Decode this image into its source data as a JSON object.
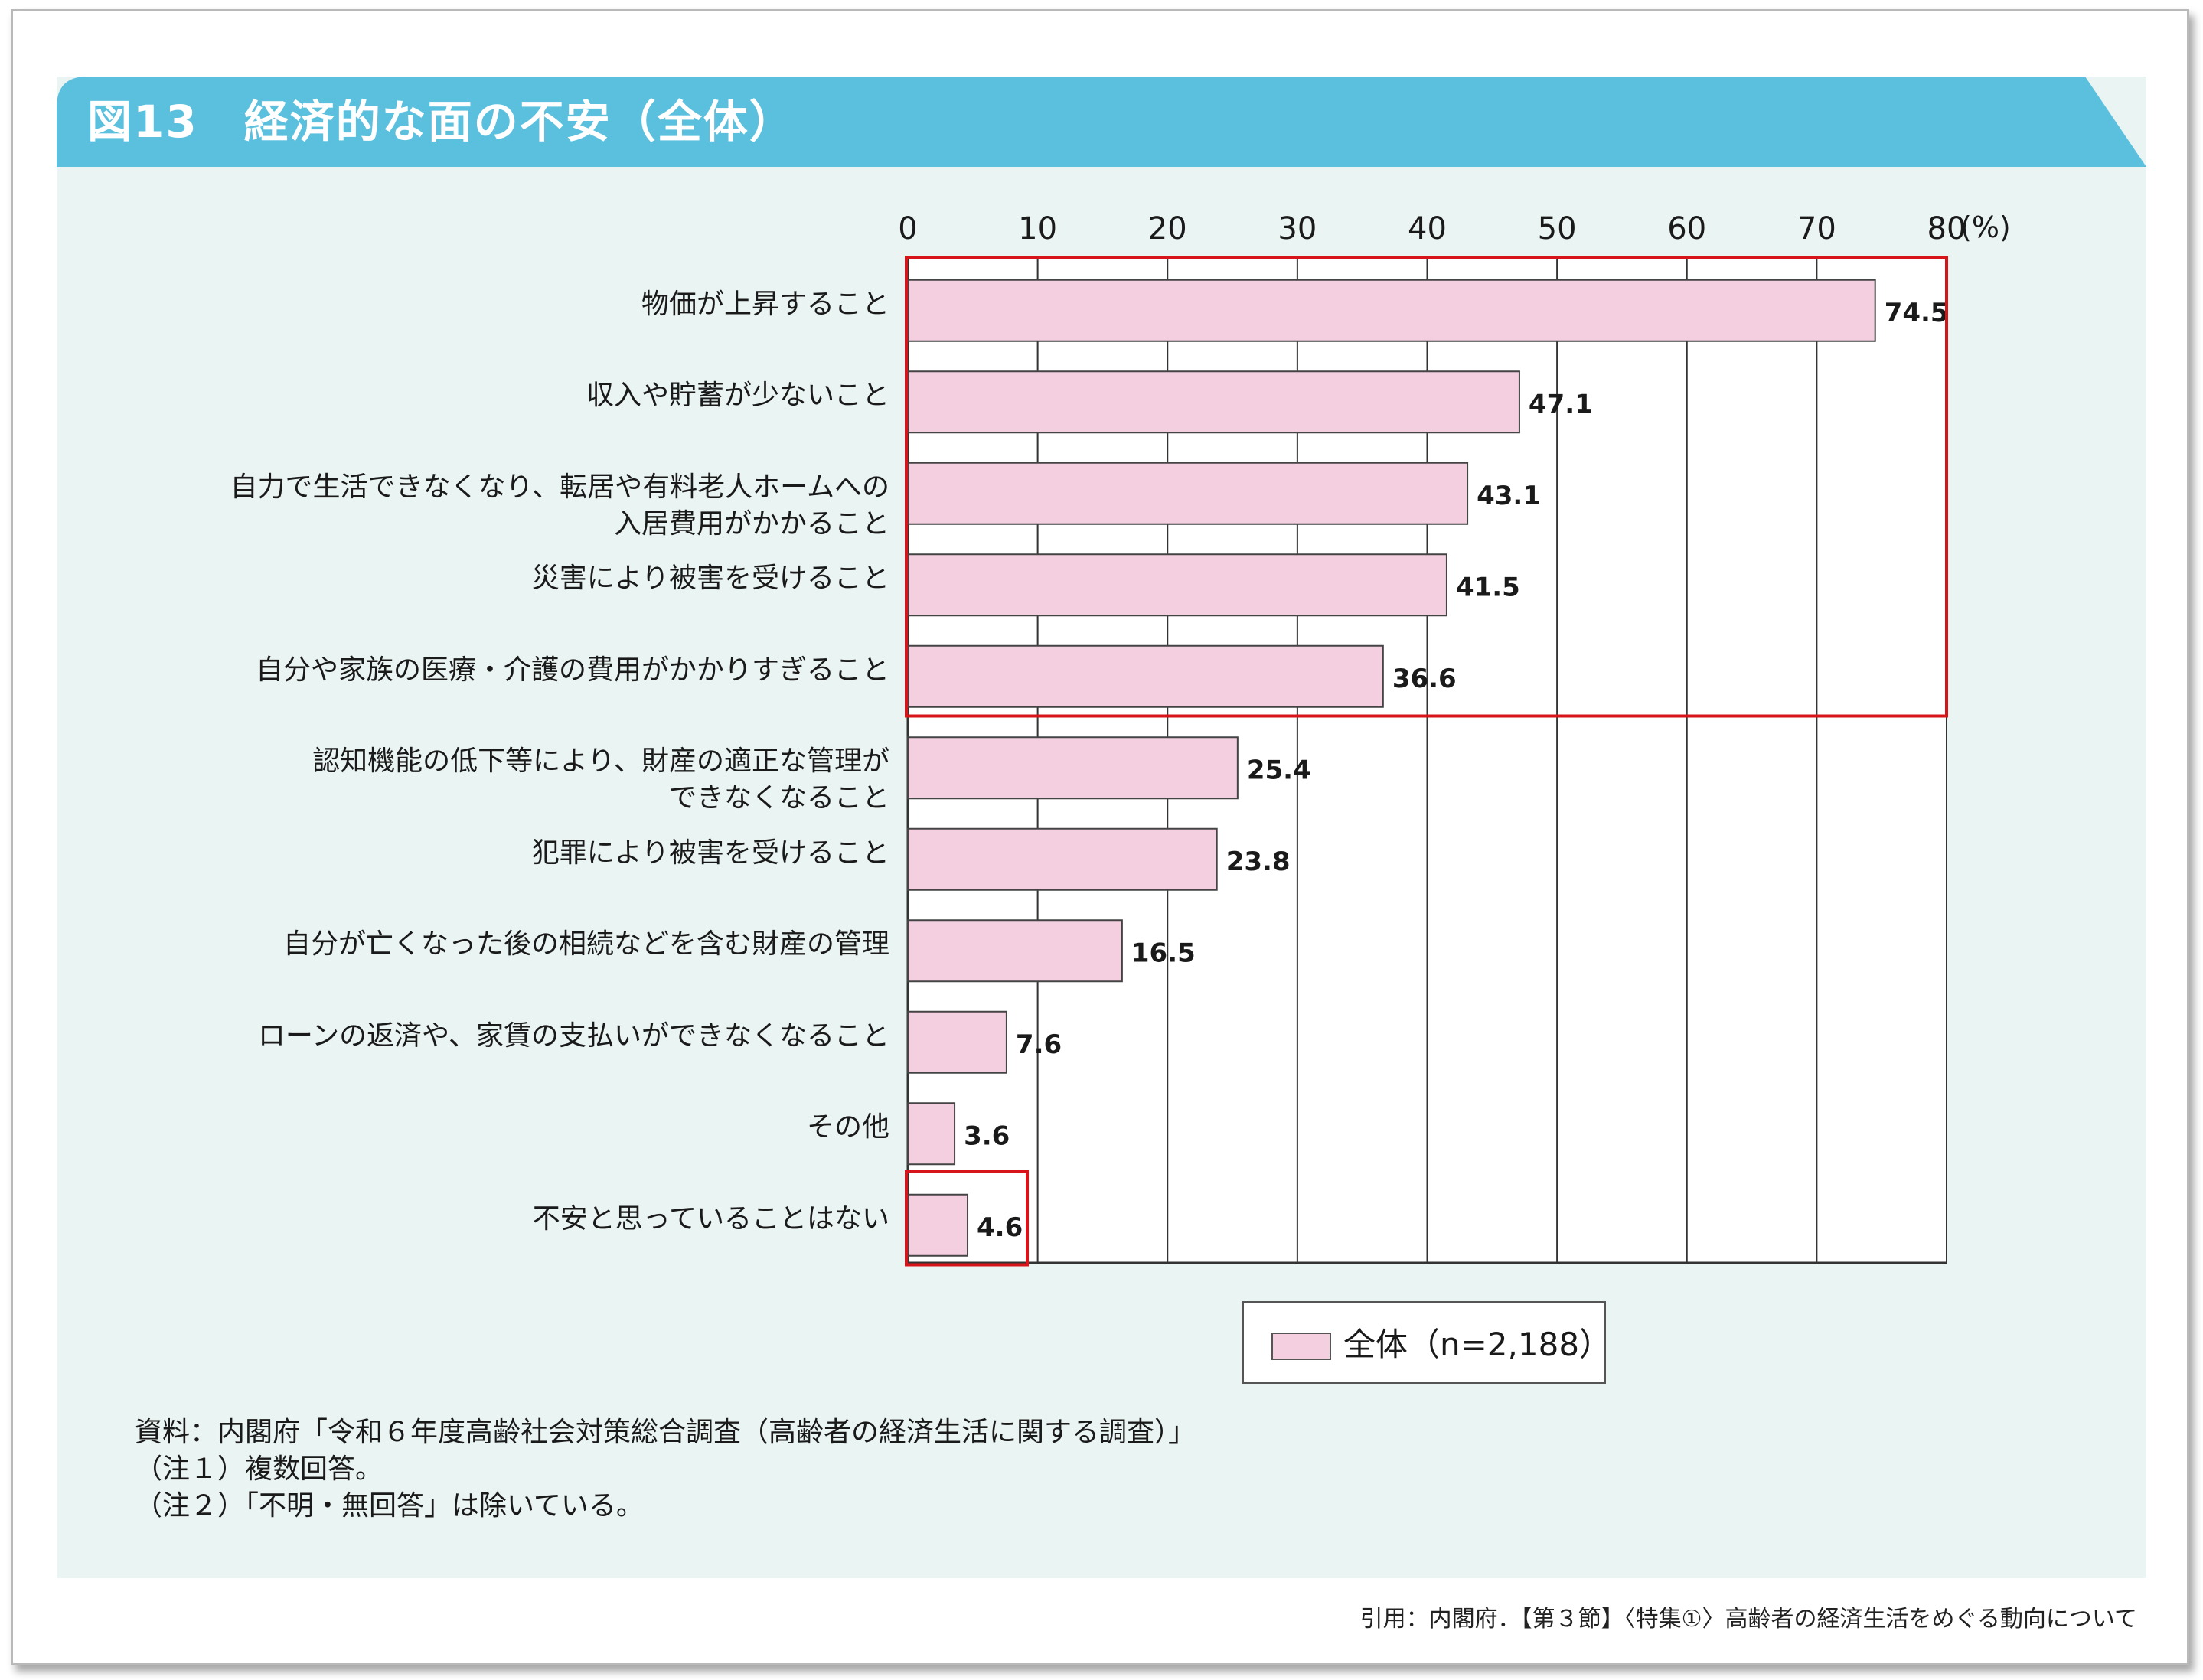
{
  "title": "図13　経済的な面の不安（全体）",
  "chart_data": {
    "type": "bar",
    "orientation": "horizontal",
    "categories": [
      [
        "物価が上昇すること"
      ],
      [
        "収入や貯蓄が少ないこと"
      ],
      [
        "自力で生活できなくなり、転居や有料老人ホームへの",
        "入居費用がかかること"
      ],
      [
        "災害により被害を受けること"
      ],
      [
        "自分や家族の医療・介護の費用がかかりすぎること"
      ],
      [
        "認知機能の低下等により、財産の適正な管理が",
        "できなくなること"
      ],
      [
        "犯罪により被害を受けること"
      ],
      [
        "自分が亡くなった後の相続などを含む財産の管理"
      ],
      [
        "ローンの返済や、家賃の支払いができなくなること"
      ],
      [
        "その他"
      ],
      [
        "不安と思っていることはない"
      ]
    ],
    "series": [
      {
        "name": "全体（n=2,188）",
        "values": [
          74.5,
          47.1,
          43.1,
          41.5,
          36.6,
          25.4,
          23.8,
          16.5,
          7.6,
          3.6,
          4.6
        ],
        "color": "#f4cfe0"
      }
    ],
    "value_labels": [
      "74.5",
      "47.1",
      "43.1",
      "41.5",
      "36.6",
      "25.4",
      "23.8",
      "16.5",
      "7.6",
      "3.6",
      "4.6"
    ],
    "xlim": [
      0,
      80
    ],
    "xticks": [
      "0",
      "10",
      "20",
      "30",
      "40",
      "50",
      "60",
      "70",
      "80"
    ],
    "xunit": "(%)",
    "xaxis_position": "top",
    "grid": true,
    "legend_position": "bottom",
    "highlight_groups": [
      {
        "from_category": 0,
        "to_category": 4,
        "color": "#d7141a"
      },
      {
        "from_category": 10,
        "to_category": 10,
        "color": "#d7141a"
      }
    ]
  },
  "legend": {
    "label": "全体（n=2,188）"
  },
  "notes": [
    "資料：内閣府「令和６年度高齢社会対策総合調査（高齢者の経済生活に関する調査）」",
    "（注１）複数回答。",
    "（注２）「不明・無回答」は除いている。"
  ],
  "citation": "引用：内閣府．【第３節】〈特集①〉高齢者の経済生活をめぐる動向について",
  "colors": {
    "title_bar": "#5bc0de",
    "panel": "#eaf4f3",
    "bar": "#f4cfe0",
    "bar_stroke": "#444444",
    "highlight": "#d7141a"
  }
}
